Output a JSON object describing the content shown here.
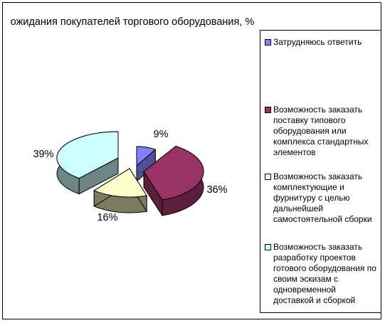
{
  "chart_data": {
    "type": "pie",
    "title": "ожидания покупателей торгового оборудования, %",
    "slices": [
      {
        "label": "Затрудняюсь ответить",
        "value": 9,
        "data_label": "9%",
        "color": "#8080ff",
        "side_color": "#505094"
      },
      {
        "label": "Возможность заказать поставку типового оборудования или комплекса стандартных элементов",
        "value": 36,
        "data_label": "36%",
        "color": "#993366",
        "side_color": "#5c1f3d"
      },
      {
        "label": "Возможность заказать комплектующие и фурнитуру с целью дальнейшей самостоятельной сборки",
        "value": 16,
        "data_label": "16%",
        "color": "#ffffcc",
        "side_color": "#7d7b5e"
      },
      {
        "label": "Возможность заказать разработку проектов готового оборудования по своим эскизам с одновременной доставкой и сборкой",
        "value": 39,
        "data_label": "39%",
        "color": "#ccffff",
        "side_color": "#6d8585"
      }
    ],
    "legend_position": "right"
  }
}
